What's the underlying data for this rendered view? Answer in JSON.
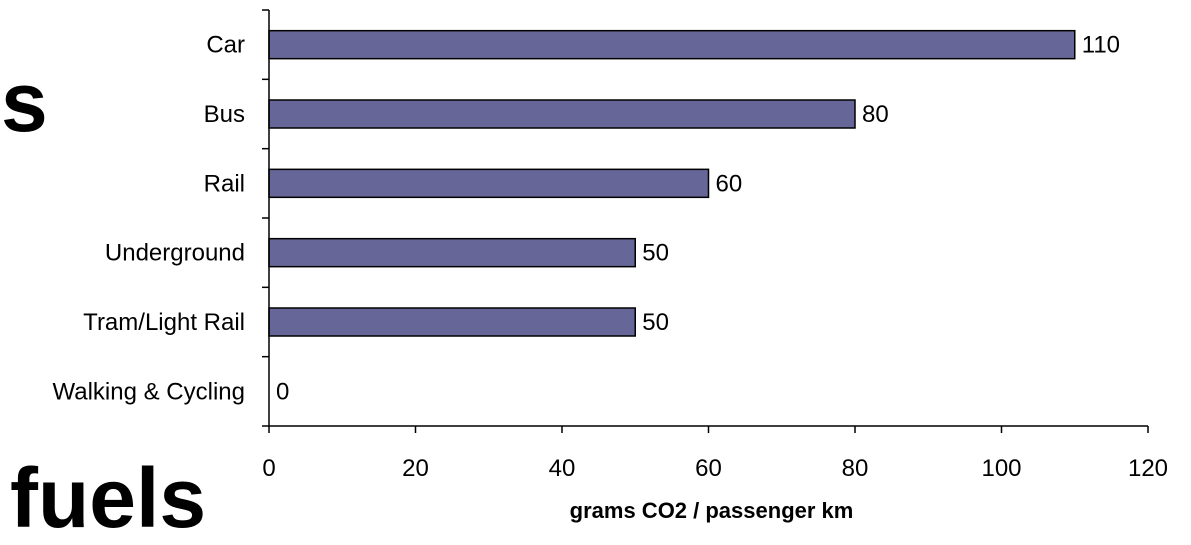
{
  "background_text": {
    "fragment_1": "s",
    "fragment_2": "fuels"
  },
  "chart_data": {
    "type": "bar",
    "orientation": "horizontal",
    "categories": [
      "Car",
      "Bus",
      "Rail",
      "Underground",
      "Tram/Light Rail",
      "Walking & Cycling"
    ],
    "values": [
      110,
      80,
      60,
      50,
      50,
      0
    ],
    "data_labels": [
      "110",
      "80",
      "60",
      "50",
      "50",
      "0"
    ],
    "title": "",
    "xlabel": "grams CO2 / passenger km",
    "ylabel": "",
    "xlim": [
      0,
      120
    ],
    "x_ticks": [
      0,
      20,
      40,
      60,
      80,
      100,
      120
    ],
    "grid": false,
    "legend": "none",
    "colors": {
      "bar_fill": "#666699",
      "bar_stroke": "#000000",
      "axis": "#000000"
    }
  }
}
